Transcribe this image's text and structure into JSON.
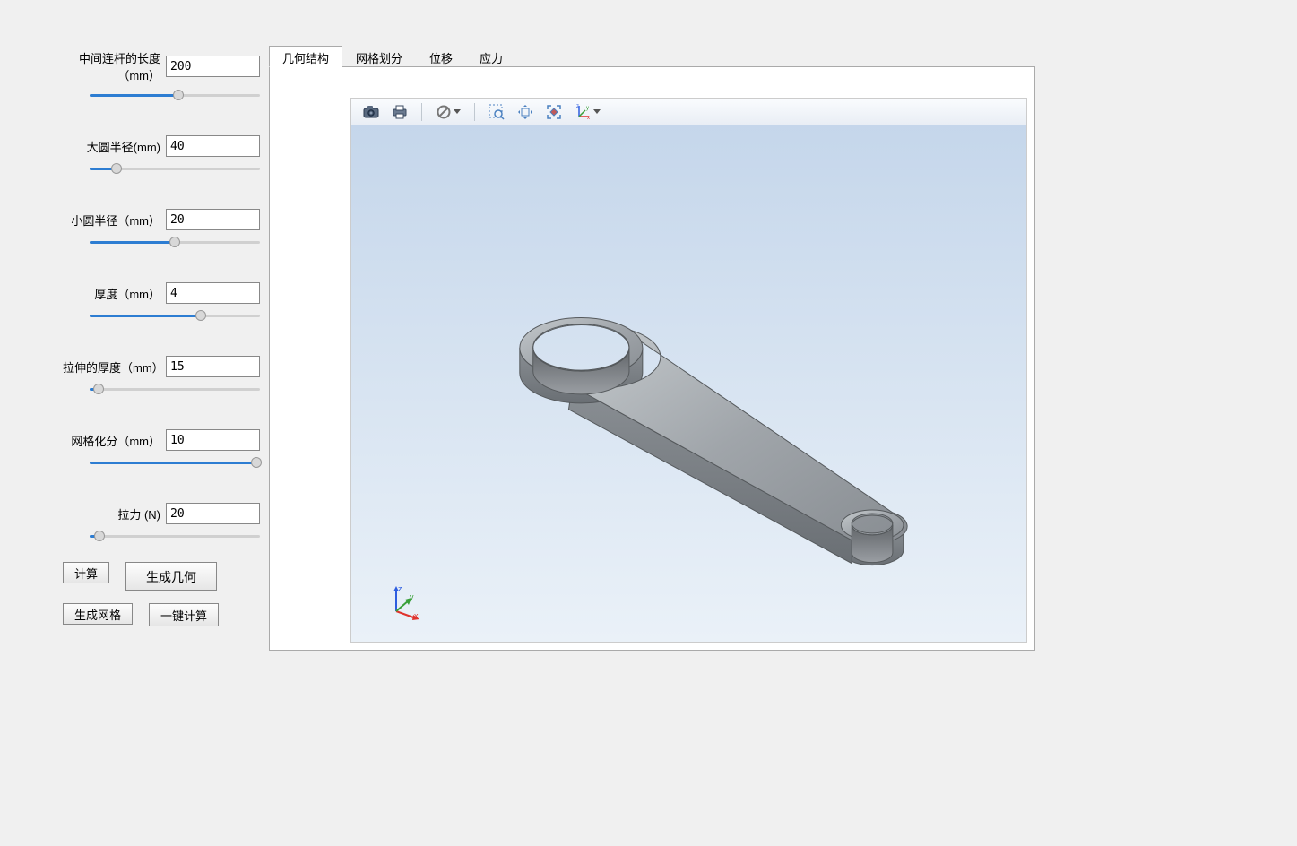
{
  "params": [
    {
      "label": "中间连杆的长度（mm）",
      "value": "200",
      "slider_pct": 52
    },
    {
      "label": "大圆半径(mm)",
      "value": "40",
      "slider_pct": 16
    },
    {
      "label": "小圆半径（mm）",
      "value": "20",
      "slider_pct": 50
    },
    {
      "label": "厚度（mm）",
      "value": "4",
      "slider_pct": 65
    },
    {
      "label": "拉伸的厚度（mm）",
      "value": "15",
      "slider_pct": 5
    },
    {
      "label": "网格化分（mm）",
      "value": "10",
      "slider_pct": 98
    },
    {
      "label": "拉力 (N)",
      "value": "20",
      "slider_pct": 6
    }
  ],
  "buttons": {
    "compute": "计算",
    "gen_geometry": "生成几何",
    "gen_mesh": "生成网格",
    "one_click": "一键计算"
  },
  "tabs": [
    {
      "label": "几何结构",
      "active": true
    },
    {
      "label": "网格划分",
      "active": false
    },
    {
      "label": "位移",
      "active": false
    },
    {
      "label": "应力",
      "active": false
    }
  ],
  "toolbar_icons": [
    "camera-icon",
    "print-icon",
    "cancel-icon-dropdown",
    "sep",
    "zoom-box-icon",
    "pan-icon",
    "fit-icon",
    "axis-icon-dropdown"
  ],
  "colors": {
    "bg": "#f0f0f0",
    "slider_fill": "#2d7dd2",
    "viewer_top": "#c3d5ea",
    "viewer_bottom": "#eaf1f8",
    "axis_x": "#e0332d",
    "axis_y": "#3aa03a",
    "axis_z": "#2d5de0"
  },
  "axis_labels": {
    "x": "x",
    "y": "y",
    "z": "z"
  },
  "model": {
    "type": "connecting-rod",
    "big_ring_outer_r": 40,
    "big_ring_inner_r": 32,
    "small_ring_outer_r": 20,
    "small_ring_inner_r": 14,
    "shaft_length": 200,
    "thickness": 15,
    "material_color": "#9a9ea3",
    "edge_color": "#55595c"
  }
}
